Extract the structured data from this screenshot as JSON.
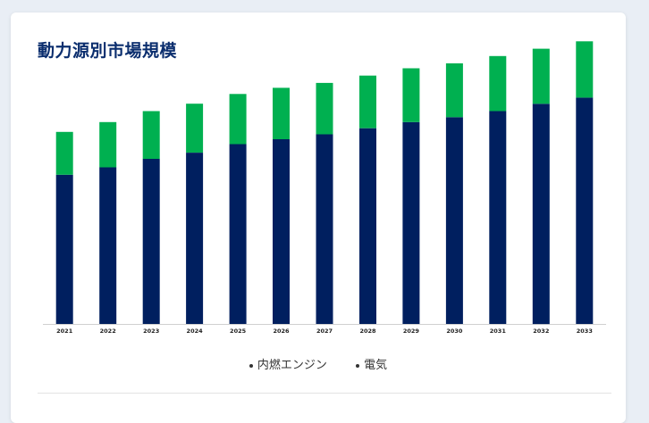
{
  "card": {
    "title": "動力源別市場規模"
  },
  "chart_data": {
    "type": "bar",
    "stacked": true,
    "title": "動力源別市場規模",
    "categories": [
      "2021",
      "2022",
      "2023",
      "2024",
      "2025",
      "2026",
      "2027",
      "2028",
      "2029",
      "2030",
      "2031",
      "2032",
      "2033"
    ],
    "series": [
      {
        "name": "内燃エンジン",
        "color": "#001f5f",
        "values": [
          122,
          128,
          135,
          140,
          147,
          151,
          155,
          160,
          165,
          169,
          174,
          180,
          185
        ]
      },
      {
        "name": "電気",
        "color": "#00b050",
        "values": [
          35,
          37,
          39,
          40,
          41,
          42,
          42,
          43,
          44,
          44,
          45,
          45,
          46
        ]
      }
    ],
    "ylim": [
      0,
      240
    ],
    "grid": false,
    "legend_position": "bottom",
    "xlabel": "",
    "ylabel": ""
  },
  "legend": {
    "items": [
      {
        "label": "内燃エンジン"
      },
      {
        "label": "電気"
      }
    ]
  }
}
